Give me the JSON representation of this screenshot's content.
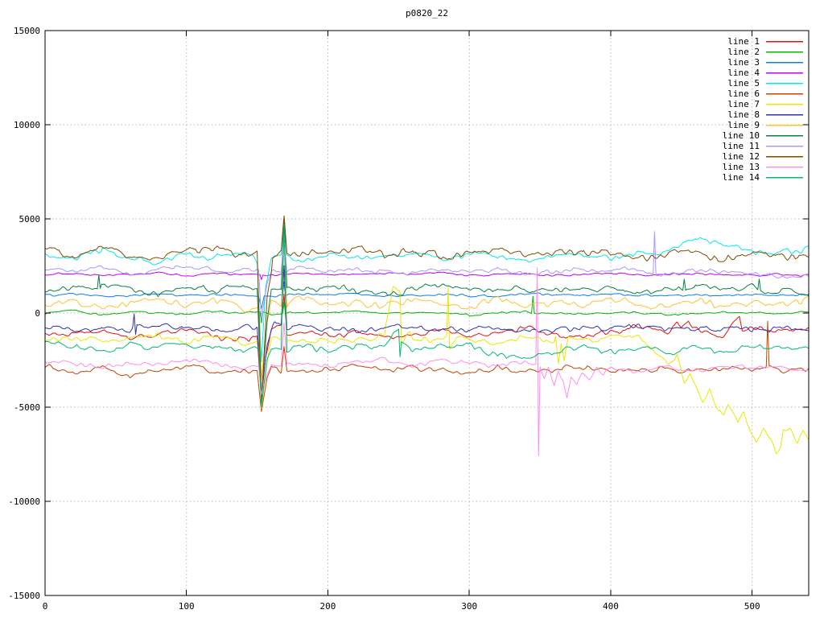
{
  "title": "p0820_22",
  "axes": {
    "x": {
      "min": 0,
      "max": 540,
      "ticks": [
        0,
        100,
        200,
        300,
        400,
        500
      ]
    },
    "y": {
      "min": -15000,
      "max": 15000,
      "ticks": [
        -15000,
        -10000,
        -5000,
        0,
        5000,
        10000,
        15000
      ]
    }
  },
  "colors": {
    "border": "#000000",
    "grid": "#b8b8b8",
    "background": "#ffffff",
    "text": "#000000"
  },
  "chart_data": {
    "type": "line",
    "title": "p0820_22",
    "xlabel": "",
    "ylabel": "",
    "xlim": [
      0,
      540
    ],
    "ylim": [
      -15000,
      15000
    ],
    "grid": true,
    "legend_position": "top-right",
    "base_x_step": 20,
    "series": [
      {
        "name": "line 1",
        "color": "#e01010",
        "noise": 260,
        "base": [
          -1100,
          -1200,
          -900,
          -1300,
          -1100,
          -800,
          -1200,
          -1500,
          -1050,
          -900,
          -1200,
          -1000,
          -1300,
          -1100,
          -900,
          -1200,
          -1000,
          -800,
          -1100,
          -1300,
          -1000,
          -700,
          -1100,
          -900,
          -1200,
          -800,
          -1000,
          -800
        ],
        "events": [
          [
            150,
            -1300
          ],
          [
            153,
            -4700
          ],
          [
            156,
            -2200
          ],
          [
            160,
            -1000
          ],
          [
            167,
            -700
          ],
          [
            169,
            900
          ],
          [
            171,
            -1200
          ],
          [
            447,
            -500
          ],
          [
            450,
            -900
          ],
          [
            455,
            -550
          ],
          [
            491,
            -200
          ],
          [
            493,
            -900
          ]
        ]
      },
      {
        "name": "line 2",
        "color": "#00b400",
        "noise": 90,
        "base": [
          0,
          100,
          -100,
          50,
          0,
          -50,
          100,
          0,
          -100,
          50,
          0,
          100,
          -50,
          0,
          50,
          -100,
          0,
          100,
          0,
          -50,
          50,
          0,
          -100,
          0,
          50,
          0,
          -50,
          50
        ],
        "events": [
          [
            152,
            100
          ],
          [
            153,
            -500
          ],
          [
            154,
            100
          ],
          [
            168,
            0
          ],
          [
            169,
            600
          ],
          [
            170,
            0
          ],
          [
            344,
            0
          ],
          [
            345,
            900
          ],
          [
            346,
            0
          ]
        ]
      },
      {
        "name": "line 3",
        "color": "#0880f0",
        "noise": 110,
        "base": [
          950,
          1000,
          900,
          950,
          1050,
          900,
          1000,
          950,
          900,
          1000,
          950,
          1050,
          900,
          950,
          1000,
          900,
          950,
          1050,
          950,
          900,
          1000,
          950,
          900,
          1000,
          950,
          1000,
          950,
          950
        ],
        "events": [
          [
            151,
            900
          ],
          [
            153,
            200
          ],
          [
            155,
            900
          ],
          [
            168,
            950
          ],
          [
            169,
            1700
          ],
          [
            170,
            950
          ]
        ]
      },
      {
        "name": "line 4",
        "color": "#c000f0",
        "noise": 90,
        "base": [
          2050,
          2100,
          2000,
          2050,
          2150,
          2000,
          2100,
          2050,
          2000,
          2100,
          2050,
          2000,
          2100,
          2050,
          2150,
          2000,
          2050,
          2100,
          2000,
          2050,
          2100,
          2000,
          2050,
          2100,
          2050,
          2000,
          2050,
          2000
        ],
        "events": [
          [
            152,
            2050
          ],
          [
            153,
            1800
          ],
          [
            154,
            2050
          ],
          [
            168,
            2050
          ],
          [
            169,
            2350
          ],
          [
            170,
            2050
          ]
        ]
      },
      {
        "name": "line 5",
        "color": "#00e8e8",
        "noise": 260,
        "base": [
          3100,
          2900,
          3300,
          3000,
          2700,
          3100,
          2900,
          3200,
          3000,
          2800,
          3100,
          2900,
          3000,
          3200,
          2900,
          3100,
          3000,
          2800,
          3000,
          3200,
          2900,
          3100,
          3300,
          4000,
          3600,
          3300,
          3200,
          3400
        ],
        "events": [
          [
            150,
            2800
          ],
          [
            153,
            -2400
          ],
          [
            156,
            1500
          ],
          [
            160,
            2800
          ],
          [
            167,
            3000
          ],
          [
            169,
            4600
          ],
          [
            171,
            3000
          ]
        ]
      },
      {
        "name": "line 6",
        "color": "#c04500",
        "noise": 240,
        "base": [
          -2700,
          -3100,
          -2900,
          -3300,
          -3000,
          -2800,
          -3200,
          -3000,
          -2900,
          -3100,
          -3000,
          -2800,
          -3100,
          -2900,
          -3000,
          -3200,
          -2900,
          -3100,
          -3000,
          -2800,
          -3100,
          -2900,
          -3000,
          -3100,
          -2900,
          -3000,
          -3100,
          -3000
        ],
        "events": [
          [
            150,
            -3000
          ],
          [
            153,
            -5300
          ],
          [
            157,
            -3500
          ],
          [
            167,
            -3100
          ],
          [
            169,
            -1800
          ],
          [
            171,
            -3100
          ],
          [
            510,
            -2900
          ],
          [
            511,
            -550
          ],
          [
            512,
            -2950
          ]
        ]
      },
      {
        "name": "line 7",
        "color": "#e8e800",
        "noise": 260,
        "base": [
          -1500,
          -1300,
          -1600,
          -1400,
          -1200,
          -1500,
          -1300,
          -1600,
          -1400,
          -1300,
          -1500,
          -1400,
          -1200,
          -1500,
          -1300,
          -1400,
          -1600,
          -1300,
          -1500,
          -1400,
          -1300,
          -1300,
          -2600,
          -3900,
          -5400,
          -6400,
          -7200,
          -6900
        ],
        "events": [
          [
            151,
            -1400
          ],
          [
            153,
            -5000
          ],
          [
            157,
            -2500
          ],
          [
            167,
            -1300
          ],
          [
            169,
            4600
          ],
          [
            171,
            -1400
          ],
          [
            241,
            -600
          ],
          [
            246,
            1400
          ],
          [
            251,
            1200
          ],
          [
            252,
            -1600
          ],
          [
            258,
            -1100
          ],
          [
            284,
            -1100
          ],
          [
            285,
            1500
          ],
          [
            286,
            -1800
          ],
          [
            291,
            -1200
          ],
          [
            361,
            -1300
          ],
          [
            363,
            -2700
          ],
          [
            365,
            -1600
          ],
          [
            367,
            -2600
          ],
          [
            370,
            -1300
          ],
          [
            447,
            -2300
          ],
          [
            452,
            -3900
          ],
          [
            456,
            -3300
          ],
          [
            465,
            -4600
          ],
          [
            470,
            -4100
          ],
          [
            476,
            -5300
          ],
          [
            483,
            -4700
          ],
          [
            490,
            -5900
          ],
          [
            494,
            -5300
          ],
          [
            503,
            -6900
          ],
          [
            508,
            -6100
          ],
          [
            513,
            -6600
          ],
          [
            517,
            -7500
          ],
          [
            522,
            -6300
          ],
          [
            527,
            -6100
          ],
          [
            532,
            -7000
          ],
          [
            536,
            -6400
          ]
        ]
      },
      {
        "name": "line 8",
        "color": "#3030b0",
        "noise": 260,
        "base": [
          -700,
          -900,
          -800,
          -1000,
          -850,
          -700,
          -950,
          -800,
          -900,
          -750,
          -850,
          -950,
          -800,
          -700,
          -900,
          -850,
          -750,
          -950,
          -850,
          -800,
          -900,
          -750,
          -850,
          -900,
          -800,
          -850,
          -750,
          -1100
        ],
        "events": [
          [
            62,
            -700
          ],
          [
            63,
            0
          ],
          [
            64,
            -1100
          ],
          [
            65,
            -600
          ],
          [
            150,
            -800
          ],
          [
            153,
            -4400
          ],
          [
            157,
            -1800
          ],
          [
            162,
            -400
          ],
          [
            167,
            -600
          ],
          [
            169,
            2500
          ],
          [
            171,
            -900
          ]
        ]
      },
      {
        "name": "line 9",
        "color": "#ffc232",
        "noise": 330,
        "base": [
          300,
          700,
          200,
          600,
          900,
          400,
          700,
          300,
          600,
          800,
          400,
          600,
          300,
          700,
          500,
          400,
          700,
          300,
          600,
          400,
          700,
          500,
          300,
          600,
          400,
          500,
          600,
          700
        ],
        "events": [
          [
            151,
            400
          ],
          [
            153,
            -3600
          ],
          [
            157,
            -500
          ],
          [
            167,
            400
          ],
          [
            169,
            4300
          ],
          [
            171,
            300
          ]
        ]
      },
      {
        "name": "line 10",
        "color": "#088040",
        "noise": 300,
        "base": [
          1100,
          1300,
          1500,
          1200,
          1000,
          1400,
          1200,
          1500,
          1300,
          1100,
          1400,
          1200,
          1000,
          1300,
          1500,
          1200,
          1400,
          1100,
          1300,
          1200,
          1400,
          1100,
          1300,
          1500,
          1200,
          1400,
          1200,
          1100
        ],
        "events": [
          [
            37,
            1300
          ],
          [
            38,
            2000
          ],
          [
            39,
            1300
          ],
          [
            150,
            1200
          ],
          [
            153,
            -4400
          ],
          [
            157,
            -300
          ],
          [
            162,
            1400
          ],
          [
            167,
            1200
          ],
          [
            169,
            5100
          ],
          [
            171,
            1300
          ],
          [
            451,
            1300
          ],
          [
            452,
            1900
          ],
          [
            453,
            1300
          ],
          [
            504,
            1200
          ],
          [
            505,
            1800
          ],
          [
            506,
            1200
          ]
        ]
      },
      {
        "name": "line 11",
        "color": "#a898f8",
        "noise": 220,
        "base": [
          2300,
          2200,
          2400,
          2100,
          2300,
          2500,
          2200,
          2300,
          2100,
          2400,
          2200,
          2300,
          2100,
          2200,
          2400,
          2200,
          2300,
          2100,
          2200,
          2300,
          2200,
          2400,
          2100,
          2300,
          2200,
          2100,
          2000,
          1900
        ],
        "events": [
          [
            151,
            2200
          ],
          [
            153,
            -300
          ],
          [
            157,
            1600
          ],
          [
            162,
            2300
          ],
          [
            167,
            2200
          ],
          [
            169,
            4300
          ],
          [
            171,
            2200
          ],
          [
            430,
            2100
          ],
          [
            431,
            4400
          ],
          [
            432,
            2100
          ]
        ]
      },
      {
        "name": "line 12",
        "color": "#804c00",
        "noise": 330,
        "base": [
          3300,
          3000,
          3400,
          3100,
          2900,
          3300,
          3500,
          3100,
          3300,
          3000,
          3200,
          3400,
          3100,
          3300,
          3000,
          3200,
          3400,
          3000,
          3200,
          3100,
          3300,
          2900,
          3100,
          3300,
          2800,
          3200,
          3000,
          2900
        ],
        "events": [
          [
            150,
            3300
          ],
          [
            153,
            -4900
          ],
          [
            157,
            600
          ],
          [
            160,
            2200
          ],
          [
            161,
            3000
          ],
          [
            167,
            3300
          ],
          [
            169,
            5100
          ],
          [
            171,
            3200
          ]
        ]
      },
      {
        "name": "line 13",
        "color": "#ff8cf0",
        "noise": 220,
        "base": [
          -2500,
          -2700,
          -2900,
          -2600,
          -2800,
          -2500,
          -2700,
          -2900,
          -2700,
          -2600,
          -2800,
          -2700,
          -2500,
          -2800,
          -2600,
          -2700,
          -2900,
          -2600,
          -2800,
          -2700,
          -2900,
          -3100,
          -2800,
          -3000,
          -2800,
          -2900,
          -2800,
          -3100
        ],
        "events": [
          [
            151,
            -2700
          ],
          [
            153,
            -4300
          ],
          [
            157,
            -3200
          ],
          [
            167,
            -2800
          ],
          [
            169,
            -600
          ],
          [
            171,
            -2800
          ],
          [
            347,
            -2700
          ],
          [
            348,
            2400
          ],
          [
            349,
            -7600
          ],
          [
            350,
            -2900
          ],
          [
            353,
            -3500
          ],
          [
            356,
            -2900
          ],
          [
            360,
            -3900
          ],
          [
            363,
            -3100
          ],
          [
            366,
            -3500
          ],
          [
            369,
            -4500
          ],
          [
            372,
            -3300
          ],
          [
            376,
            -3800
          ],
          [
            380,
            -3200
          ],
          [
            385,
            -3600
          ],
          [
            390,
            -3000
          ],
          [
            395,
            -3300
          ],
          [
            400,
            -2900
          ]
        ]
      },
      {
        "name": "line 14",
        "color": "#00b873",
        "noise": 280,
        "base": [
          -1500,
          -1800,
          -2000,
          -1700,
          -1900,
          -1600,
          -1800,
          -2000,
          -1800,
          -1700,
          -1900,
          -1800,
          -1600,
          -1900,
          -1700,
          -1800,
          -2200,
          -2400,
          -2100,
          -1900,
          -2000,
          -1800,
          -2100,
          -1900,
          -2000,
          -1800,
          -1900,
          -1900
        ],
        "events": [
          [
            151,
            -1800
          ],
          [
            153,
            -4900
          ],
          [
            157,
            -2400
          ],
          [
            167,
            -1900
          ],
          [
            169,
            4800
          ],
          [
            171,
            -2000
          ],
          [
            250,
            -800
          ],
          [
            251,
            -2300
          ],
          [
            252,
            -1500
          ]
        ]
      }
    ]
  }
}
